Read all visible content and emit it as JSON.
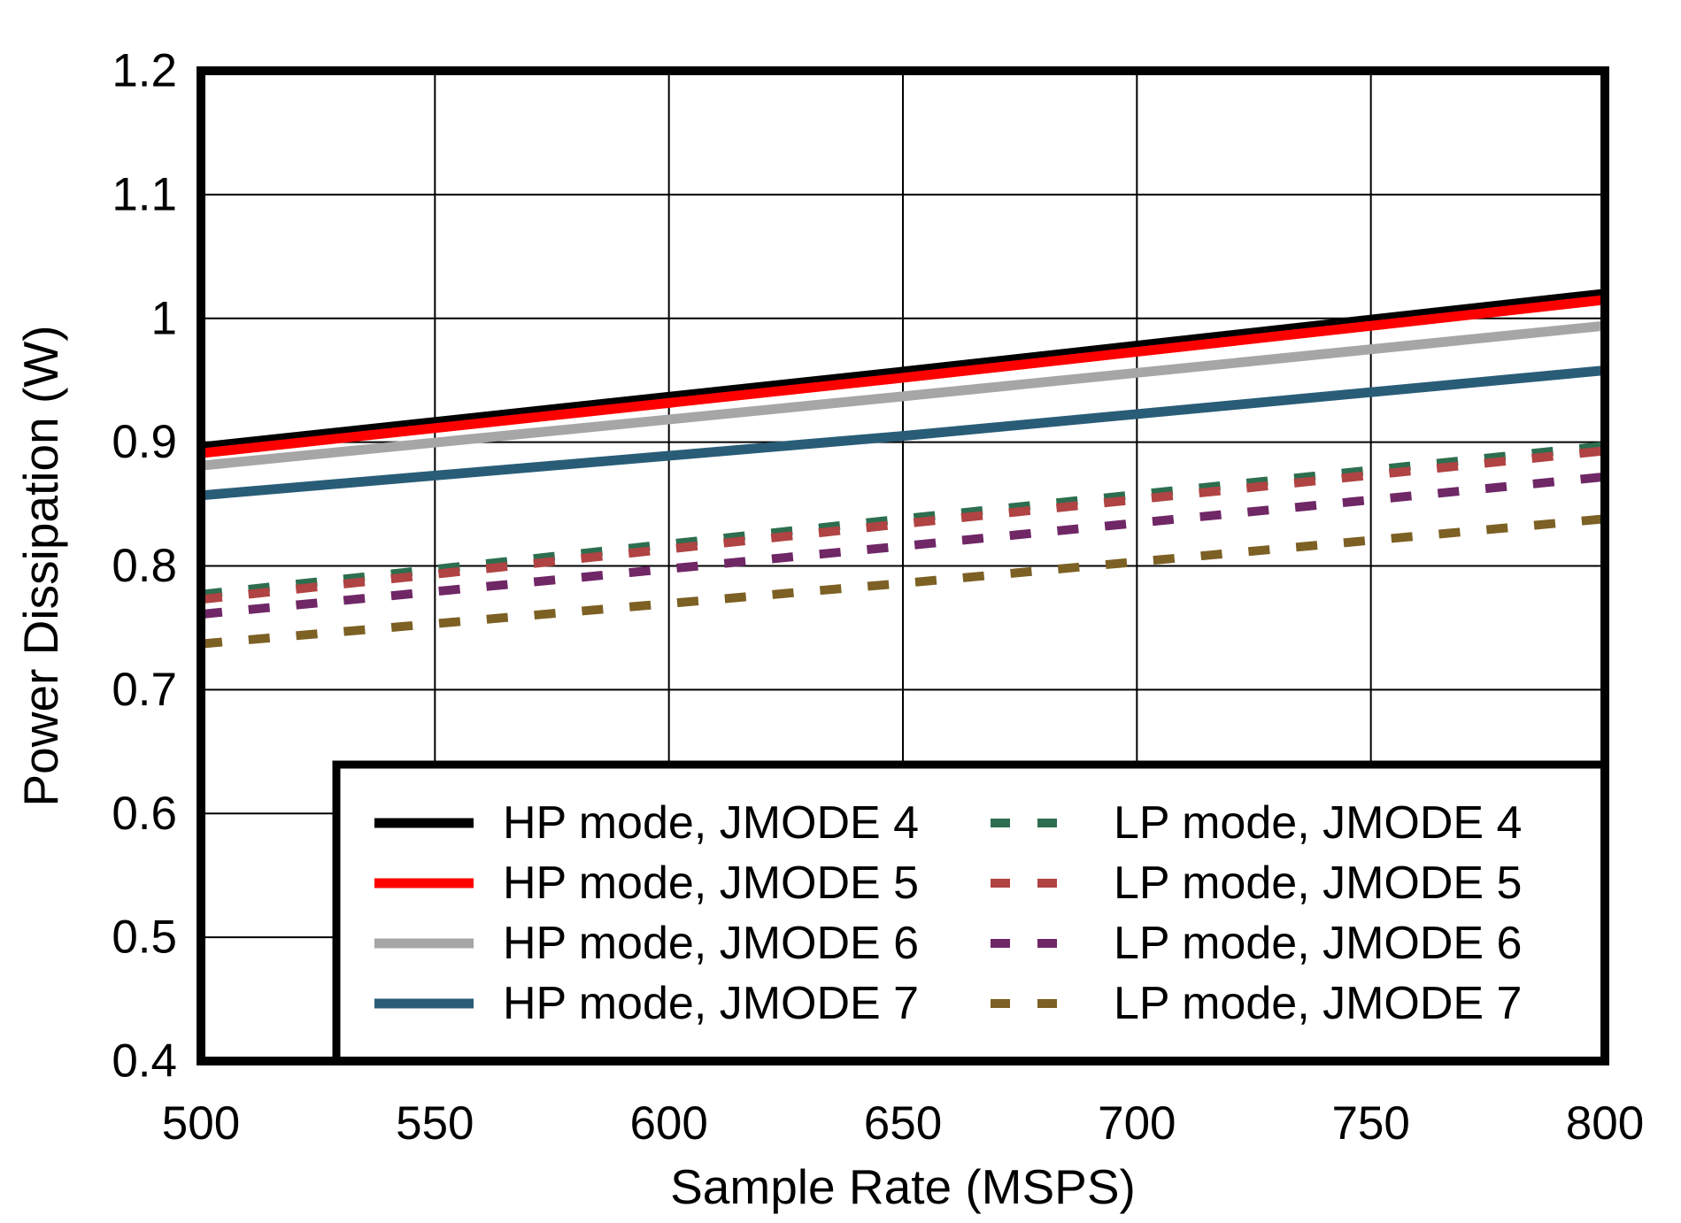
{
  "chart_data": {
    "type": "line",
    "title": "",
    "xlabel": "Sample Rate (MSPS)",
    "ylabel": "Power Dissipation (W)",
    "xlim": [
      500,
      800
    ],
    "ylim": [
      0.4,
      1.2
    ],
    "x_ticks": [
      500,
      550,
      600,
      650,
      700,
      750,
      800
    ],
    "x_tick_labels": [
      "500",
      "550",
      "600",
      "650",
      "700",
      "750",
      "800"
    ],
    "y_ticks": [
      0.4,
      0.5,
      0.6,
      0.7,
      0.8,
      0.9,
      1.0,
      1.1,
      1.2
    ],
    "y_tick_labels": [
      "0.4",
      "0.5",
      "0.6",
      "0.7",
      "0.8",
      "0.9",
      "1",
      "1.1",
      "1.2"
    ],
    "grid": true,
    "legend_position": "inside-bottom-right",
    "legend_columns": [
      [
        0,
        1,
        2,
        3
      ],
      [
        4,
        5,
        6,
        7
      ]
    ],
    "x": [
      500,
      650,
      800
    ],
    "series": [
      {
        "name": "HP mode, JMODE 4",
        "color": "#000000",
        "style": "solid",
        "values": [
          0.896,
          0.957,
          1.02
        ]
      },
      {
        "name": "HP mode, JMODE 5",
        "color": "#FF0000",
        "style": "solid",
        "values": [
          0.891,
          0.952,
          1.015
        ]
      },
      {
        "name": "HP mode, JMODE 6",
        "color": "#A6A6A6",
        "style": "solid",
        "values": [
          0.881,
          0.937,
          0.994
        ]
      },
      {
        "name": "HP mode, JMODE 7",
        "color": "#295D77",
        "style": "solid",
        "values": [
          0.857,
          0.905,
          0.958
        ]
      },
      {
        "name": "LP mode, JMODE 4",
        "color": "#2D6E4F",
        "style": "dashed",
        "values": [
          0.777,
          0.838,
          0.897
        ]
      },
      {
        "name": "LP mode, JMODE 5",
        "color": "#B04343",
        "style": "dashed",
        "values": [
          0.773,
          0.834,
          0.893
        ]
      },
      {
        "name": "LP mode, JMODE 6",
        "color": "#6F2766",
        "style": "dashed",
        "values": [
          0.761,
          0.816,
          0.872
        ]
      },
      {
        "name": "LP mode, JMODE 7",
        "color": "#7C6024",
        "style": "dashed",
        "values": [
          0.737,
          0.786,
          0.838
        ]
      }
    ],
    "frame_color": "#000000",
    "grid_color": "#000000",
    "background_color": "#FFFFFF"
  }
}
